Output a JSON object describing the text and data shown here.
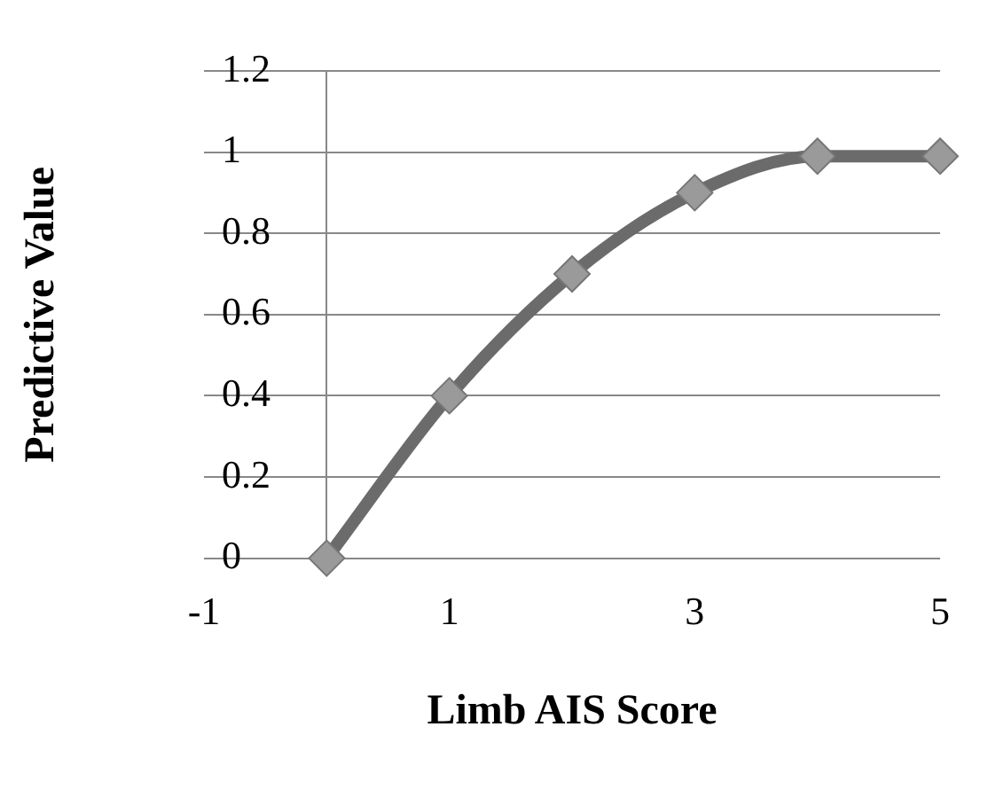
{
  "chart_data": {
    "type": "line",
    "xlabel": "Limb AIS Score",
    "ylabel": "Predictive Value",
    "x": [
      0,
      1,
      2,
      3,
      4,
      5
    ],
    "series": [
      {
        "color": "#6b6b6b",
        "values": [
          0,
          0.4,
          0.7,
          0.9,
          0.99,
          0.99
        ]
      }
    ],
    "xlim": [
      -1,
      5
    ],
    "xticks": [
      -1,
      1,
      3,
      5
    ],
    "ylim": [
      0,
      1.2
    ],
    "yticks": [
      0,
      0.2,
      0.4,
      0.6,
      0.8,
      1,
      1.2
    ],
    "grid": "y",
    "legend": false,
    "marker": "diamond",
    "line_style": "solid"
  }
}
